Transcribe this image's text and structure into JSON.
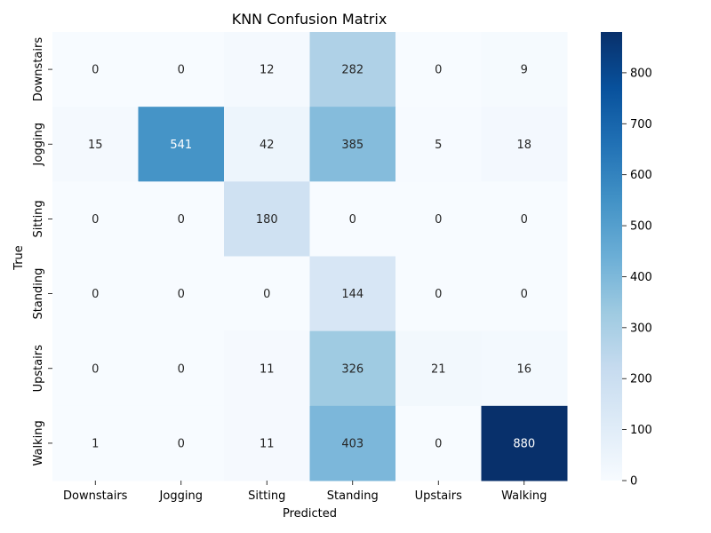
{
  "chart_data": {
    "type": "heatmap",
    "title": "KNN Confusion Matrix",
    "xlabel": "Predicted",
    "ylabel": "True",
    "x_categories": [
      "Downstairs",
      "Jogging",
      "Sitting",
      "Standing",
      "Upstairs",
      "Walking"
    ],
    "y_categories": [
      "Downstairs",
      "Jogging",
      "Sitting",
      "Standing",
      "Upstairs",
      "Walking"
    ],
    "values": [
      [
        0,
        0,
        12,
        282,
        0,
        9
      ],
      [
        15,
        541,
        42,
        385,
        5,
        18
      ],
      [
        0,
        0,
        180,
        0,
        0,
        0
      ],
      [
        0,
        0,
        0,
        144,
        0,
        0
      ],
      [
        0,
        0,
        11,
        326,
        21,
        16
      ],
      [
        1,
        0,
        11,
        403,
        0,
        880
      ]
    ],
    "value_range": [
      0,
      880
    ],
    "colormap": "Blues",
    "colorbar_ticks": [
      0,
      100,
      200,
      300,
      400,
      500,
      600,
      700,
      800
    ],
    "colors": {
      "low": "#f7fbff",
      "high": "#08306b",
      "text_dark": "#262626",
      "text_light": "#ffffff"
    },
    "grid": false
  }
}
